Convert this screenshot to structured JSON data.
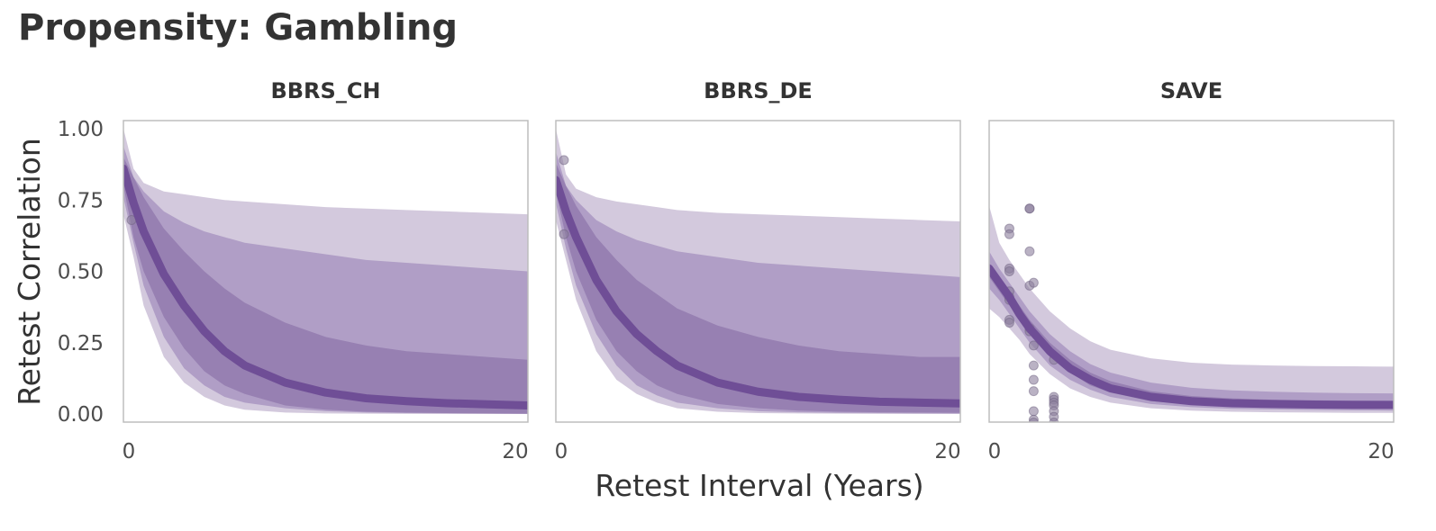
{
  "chart_data": {
    "type": "line",
    "title": "Propensity: Gambling",
    "xlabel": "Retest Interval (Years)",
    "ylabel": "Retest Correlation",
    "xlim": [
      0,
      20
    ],
    "ylim": [
      0,
      1
    ],
    "x_ticks": [
      "0",
      "20"
    ],
    "y_ticks": [
      "0.00",
      "0.25",
      "0.50",
      "0.75",
      "1.00"
    ],
    "grid": false,
    "colors": {
      "line": "#6f4e96",
      "band_inner": "#9780b2",
      "band_mid": "#b09ec6",
      "band_outer": "#d3c9dd",
      "point": "#8c7f9c",
      "frame": "#bdbdbd"
    },
    "facets": [
      {
        "name": "BBRS_CH",
        "curve": {
          "x": [
            0,
            0.5,
            1,
            2,
            3,
            4,
            5,
            6,
            8,
            10,
            12,
            14,
            16,
            18,
            20
          ],
          "y": [
            0.86,
            0.74,
            0.64,
            0.49,
            0.38,
            0.29,
            0.22,
            0.17,
            0.11,
            0.075,
            0.055,
            0.045,
            0.038,
            0.034,
            0.03
          ]
        },
        "band_inner": {
          "lower": [
            0.8,
            0.62,
            0.5,
            0.34,
            0.23,
            0.15,
            0.1,
            0.07,
            0.03,
            0.015,
            0.008,
            0.005,
            0.003,
            0.002,
            0.001
          ],
          "upper": [
            0.9,
            0.83,
            0.76,
            0.65,
            0.57,
            0.5,
            0.44,
            0.39,
            0.32,
            0.27,
            0.24,
            0.22,
            0.21,
            0.2,
            0.19
          ]
        },
        "band_mid": {
          "lower": [
            0.76,
            0.6,
            0.45,
            0.27,
            0.16,
            0.1,
            0.06,
            0.04,
            0.02,
            0.01,
            0.005,
            0.003,
            0.002,
            0.001,
            0.0005
          ],
          "upper": [
            0.94,
            0.83,
            0.78,
            0.71,
            0.67,
            0.64,
            0.62,
            0.6,
            0.58,
            0.56,
            0.54,
            0.53,
            0.52,
            0.51,
            0.5
          ]
        },
        "band_outer": {
          "lower": [
            0.7,
            0.55,
            0.38,
            0.2,
            0.11,
            0.06,
            0.03,
            0.015,
            0.005,
            0.002,
            0.001,
            0.0005,
            0.0003,
            0.0002,
            0.0001
          ],
          "upper": [
            1.0,
            0.86,
            0.81,
            0.78,
            0.77,
            0.76,
            0.75,
            0.745,
            0.735,
            0.725,
            0.72,
            0.715,
            0.71,
            0.705,
            0.7
          ]
        },
        "points": [
          {
            "x": 0.4,
            "y": 0.68
          }
        ]
      },
      {
        "name": "BBRS_DE",
        "curve": {
          "x": [
            0,
            0.5,
            1,
            2,
            3,
            4,
            5,
            6,
            8,
            10,
            12,
            14,
            16,
            18,
            20
          ],
          "y": [
            0.82,
            0.71,
            0.62,
            0.47,
            0.36,
            0.28,
            0.22,
            0.17,
            0.11,
            0.078,
            0.06,
            0.05,
            0.043,
            0.04,
            0.037
          ]
        },
        "band_inner": {
          "lower": [
            0.78,
            0.62,
            0.5,
            0.33,
            0.22,
            0.15,
            0.1,
            0.07,
            0.035,
            0.02,
            0.012,
            0.008,
            0.006,
            0.005,
            0.004
          ],
          "upper": [
            0.88,
            0.8,
            0.73,
            0.62,
            0.54,
            0.47,
            0.42,
            0.37,
            0.31,
            0.27,
            0.24,
            0.22,
            0.21,
            0.2,
            0.2
          ]
        },
        "band_mid": {
          "lower": [
            0.74,
            0.58,
            0.45,
            0.28,
            0.17,
            0.1,
            0.065,
            0.04,
            0.02,
            0.01,
            0.006,
            0.004,
            0.003,
            0.002,
            0.001
          ],
          "upper": [
            0.92,
            0.8,
            0.75,
            0.68,
            0.64,
            0.61,
            0.59,
            0.57,
            0.55,
            0.53,
            0.52,
            0.51,
            0.5,
            0.49,
            0.48
          ]
        },
        "band_outer": {
          "lower": [
            0.68,
            0.54,
            0.4,
            0.22,
            0.12,
            0.07,
            0.04,
            0.02,
            0.008,
            0.003,
            0.002,
            0.001,
            0.0005,
            0.0003,
            0.0002
          ],
          "upper": [
            1.0,
            0.84,
            0.79,
            0.76,
            0.745,
            0.735,
            0.725,
            0.715,
            0.705,
            0.7,
            0.695,
            0.69,
            0.685,
            0.68,
            0.675
          ]
        },
        "points": [
          {
            "x": 0.4,
            "y": 0.89
          },
          {
            "x": 0.4,
            "y": 0.63
          }
        ]
      },
      {
        "name": "SAVE",
        "curve": {
          "x": [
            0,
            0.5,
            1,
            1.5,
            2,
            3,
            4,
            5,
            6,
            8,
            10,
            12,
            14,
            16,
            18,
            20
          ],
          "y": [
            0.51,
            0.46,
            0.41,
            0.35,
            0.3,
            0.22,
            0.16,
            0.12,
            0.09,
            0.06,
            0.045,
            0.038,
            0.035,
            0.033,
            0.032,
            0.032
          ]
        },
        "band_inner": {
          "lower": [
            0.48,
            0.43,
            0.38,
            0.33,
            0.28,
            0.2,
            0.145,
            0.1,
            0.075,
            0.045,
            0.033,
            0.027,
            0.024,
            0.022,
            0.021,
            0.02
          ],
          "upper": [
            0.53,
            0.48,
            0.43,
            0.38,
            0.33,
            0.25,
            0.19,
            0.145,
            0.115,
            0.08,
            0.063,
            0.055,
            0.05,
            0.048,
            0.047,
            0.046
          ]
        },
        "band_mid": {
          "lower": [
            0.44,
            0.4,
            0.35,
            0.3,
            0.25,
            0.17,
            0.12,
            0.085,
            0.06,
            0.035,
            0.024,
            0.018,
            0.016,
            0.014,
            0.013,
            0.012
          ],
          "upper": [
            0.57,
            0.51,
            0.46,
            0.41,
            0.36,
            0.28,
            0.22,
            0.175,
            0.145,
            0.11,
            0.092,
            0.083,
            0.078,
            0.075,
            0.073,
            0.072
          ]
        },
        "band_outer": {
          "lower": [
            0.37,
            0.34,
            0.3,
            0.26,
            0.21,
            0.14,
            0.09,
            0.06,
            0.04,
            0.02,
            0.012,
            0.008,
            0.006,
            0.005,
            0.004,
            0.004
          ],
          "upper": [
            0.73,
            0.6,
            0.54,
            0.49,
            0.44,
            0.36,
            0.3,
            0.255,
            0.225,
            0.195,
            0.18,
            0.173,
            0.17,
            0.168,
            0.167,
            0.166
          ]
        },
        "points": [
          {
            "x": 1.0,
            "y": 0.65
          },
          {
            "x": 1.0,
            "y": 0.63
          },
          {
            "x": 1.0,
            "y": 0.51
          },
          {
            "x": 1.0,
            "y": 0.5
          },
          {
            "x": 1.0,
            "y": 0.43
          },
          {
            "x": 1.0,
            "y": 0.41
          },
          {
            "x": 1.0,
            "y": 0.4
          },
          {
            "x": 1.0,
            "y": 0.33
          },
          {
            "x": 1.0,
            "y": 0.32
          },
          {
            "x": 2.0,
            "y": 0.72
          },
          {
            "x": 2.0,
            "y": 0.72
          },
          {
            "x": 2.0,
            "y": 0.57
          },
          {
            "x": 2.0,
            "y": 0.45
          },
          {
            "x": 2.2,
            "y": 0.46
          },
          {
            "x": 2.0,
            "y": 0.3
          },
          {
            "x": 2.0,
            "y": 0.29
          },
          {
            "x": 2.2,
            "y": 0.24
          },
          {
            "x": 2.2,
            "y": 0.17
          },
          {
            "x": 2.2,
            "y": 0.12
          },
          {
            "x": 2.2,
            "y": 0.08
          },
          {
            "x": 2.2,
            "y": 0.01
          },
          {
            "x": 2.2,
            "y": -0.02
          },
          {
            "x": 2.2,
            "y": -0.03
          },
          {
            "x": 3.2,
            "y": 0.19
          },
          {
            "x": 3.2,
            "y": 0.06
          },
          {
            "x": 3.2,
            "y": 0.05
          },
          {
            "x": 3.2,
            "y": 0.04
          },
          {
            "x": 3.2,
            "y": 0.03
          },
          {
            "x": 3.2,
            "y": 0.01
          },
          {
            "x": 3.2,
            "y": -0.01
          },
          {
            "x": 3.2,
            "y": -0.03
          }
        ]
      }
    ]
  }
}
